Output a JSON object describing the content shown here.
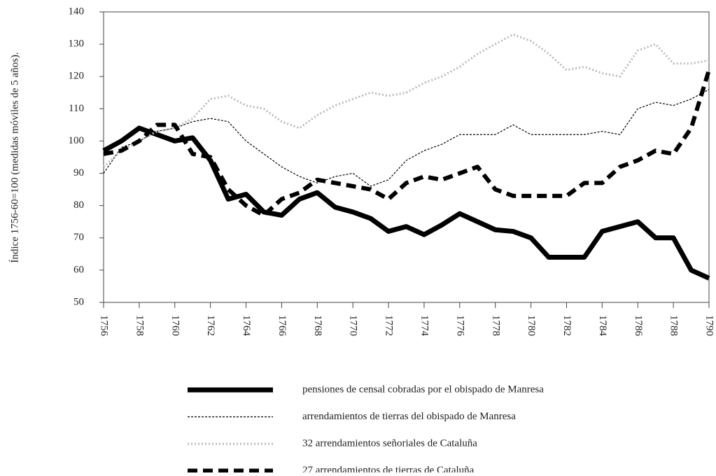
{
  "chart_data": {
    "type": "line",
    "y_label": "Índice 1756-60=100 (medidas móviles de 5 años).",
    "x": [
      1756,
      1757,
      1758,
      1759,
      1760,
      1761,
      1762,
      1763,
      1764,
      1765,
      1766,
      1767,
      1768,
      1769,
      1770,
      1771,
      1772,
      1773,
      1774,
      1775,
      1776,
      1777,
      1778,
      1779,
      1780,
      1781,
      1782,
      1783,
      1784,
      1785,
      1786,
      1787,
      1788,
      1789,
      1790
    ],
    "xlim": [
      1756,
      1790
    ],
    "xticks": [
      1756,
      1758,
      1760,
      1762,
      1764,
      1766,
      1768,
      1770,
      1772,
      1774,
      1776,
      1778,
      1780,
      1782,
      1784,
      1786,
      1788,
      1790
    ],
    "ylim": [
      50,
      140
    ],
    "yticks": [
      50,
      60,
      70,
      80,
      90,
      100,
      110,
      120,
      130,
      140
    ],
    "series": [
      {
        "name": "pensiones de censal cobradas por el obispado de Manresa",
        "color": "#000000",
        "values": [
          97,
          100,
          104,
          102,
          100,
          101,
          94,
          82,
          83.5,
          78,
          77,
          82,
          84,
          79.5,
          78,
          76,
          72,
          73.5,
          71,
          74,
          77.5,
          75,
          72.5,
          72,
          70,
          64,
          64,
          64,
          72,
          73.5,
          75,
          70,
          70,
          60,
          57.5
        ]
      },
      {
        "name": "arrendamientos de tierras del obispado de Manresa",
        "color": "#000000",
        "values": [
          90,
          98,
          100,
          103,
          104,
          106,
          107,
          106,
          100,
          96,
          92,
          89,
          87,
          89,
          90,
          86,
          88,
          94,
          97,
          99,
          102,
          102,
          102,
          105,
          102,
          102,
          102,
          102,
          103,
          102,
          110,
          112,
          111,
          113,
          116
        ]
      },
      {
        "name": "32 arrendamientos señoriales de Cataluña",
        "color": "#bbbbbb",
        "values": [
          92,
          97,
          100,
          103,
          104,
          107,
          113,
          114,
          111,
          110,
          106,
          104,
          108,
          111,
          113,
          115,
          114,
          115,
          118,
          120,
          123,
          127,
          130,
          133,
          131,
          127,
          122,
          123,
          121,
          120,
          128,
          130,
          124,
          124,
          125
        ]
      },
      {
        "name": "27 arrendamientos  de tierras de Cataluña",
        "color": "#000000",
        "values": [
          96,
          97,
          100,
          105,
          105,
          96,
          95,
          85,
          80,
          77,
          82,
          84,
          88,
          87,
          86,
          85,
          82,
          87,
          89,
          88,
          90,
          92,
          85,
          83,
          83,
          83,
          83,
          87,
          87,
          92,
          94,
          97,
          96,
          104,
          122
        ]
      }
    ]
  }
}
